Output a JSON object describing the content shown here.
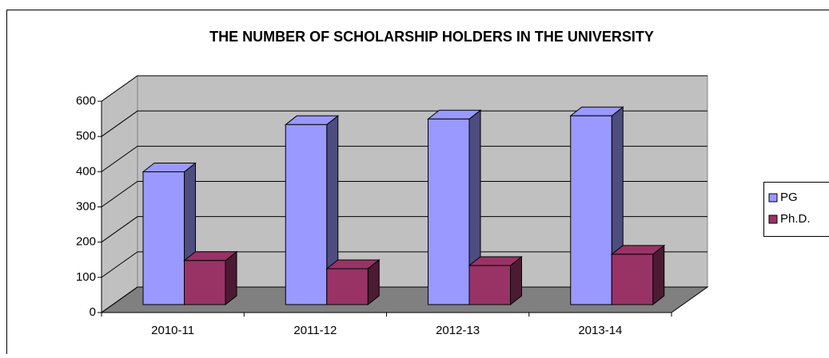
{
  "chart_data": {
    "type": "bar3d",
    "title": "THE NUMBER OF SCHOLARSHIP HOLDERS IN THE UNIVERSITY",
    "categories": [
      "2010-11",
      "2011-12",
      "2012-13",
      "2013-14"
    ],
    "series": [
      {
        "name": "PG",
        "color": "#9999ff",
        "values": [
          377,
          511,
          527,
          536
        ]
      },
      {
        "name": "Ph.D.",
        "color": "#993366",
        "values": [
          125,
          102,
          111,
          143
        ]
      }
    ],
    "ylim": [
      0,
      600
    ],
    "yticks": [
      0,
      100,
      200,
      300,
      400,
      500,
      600
    ],
    "grid": true,
    "legend": "right"
  }
}
